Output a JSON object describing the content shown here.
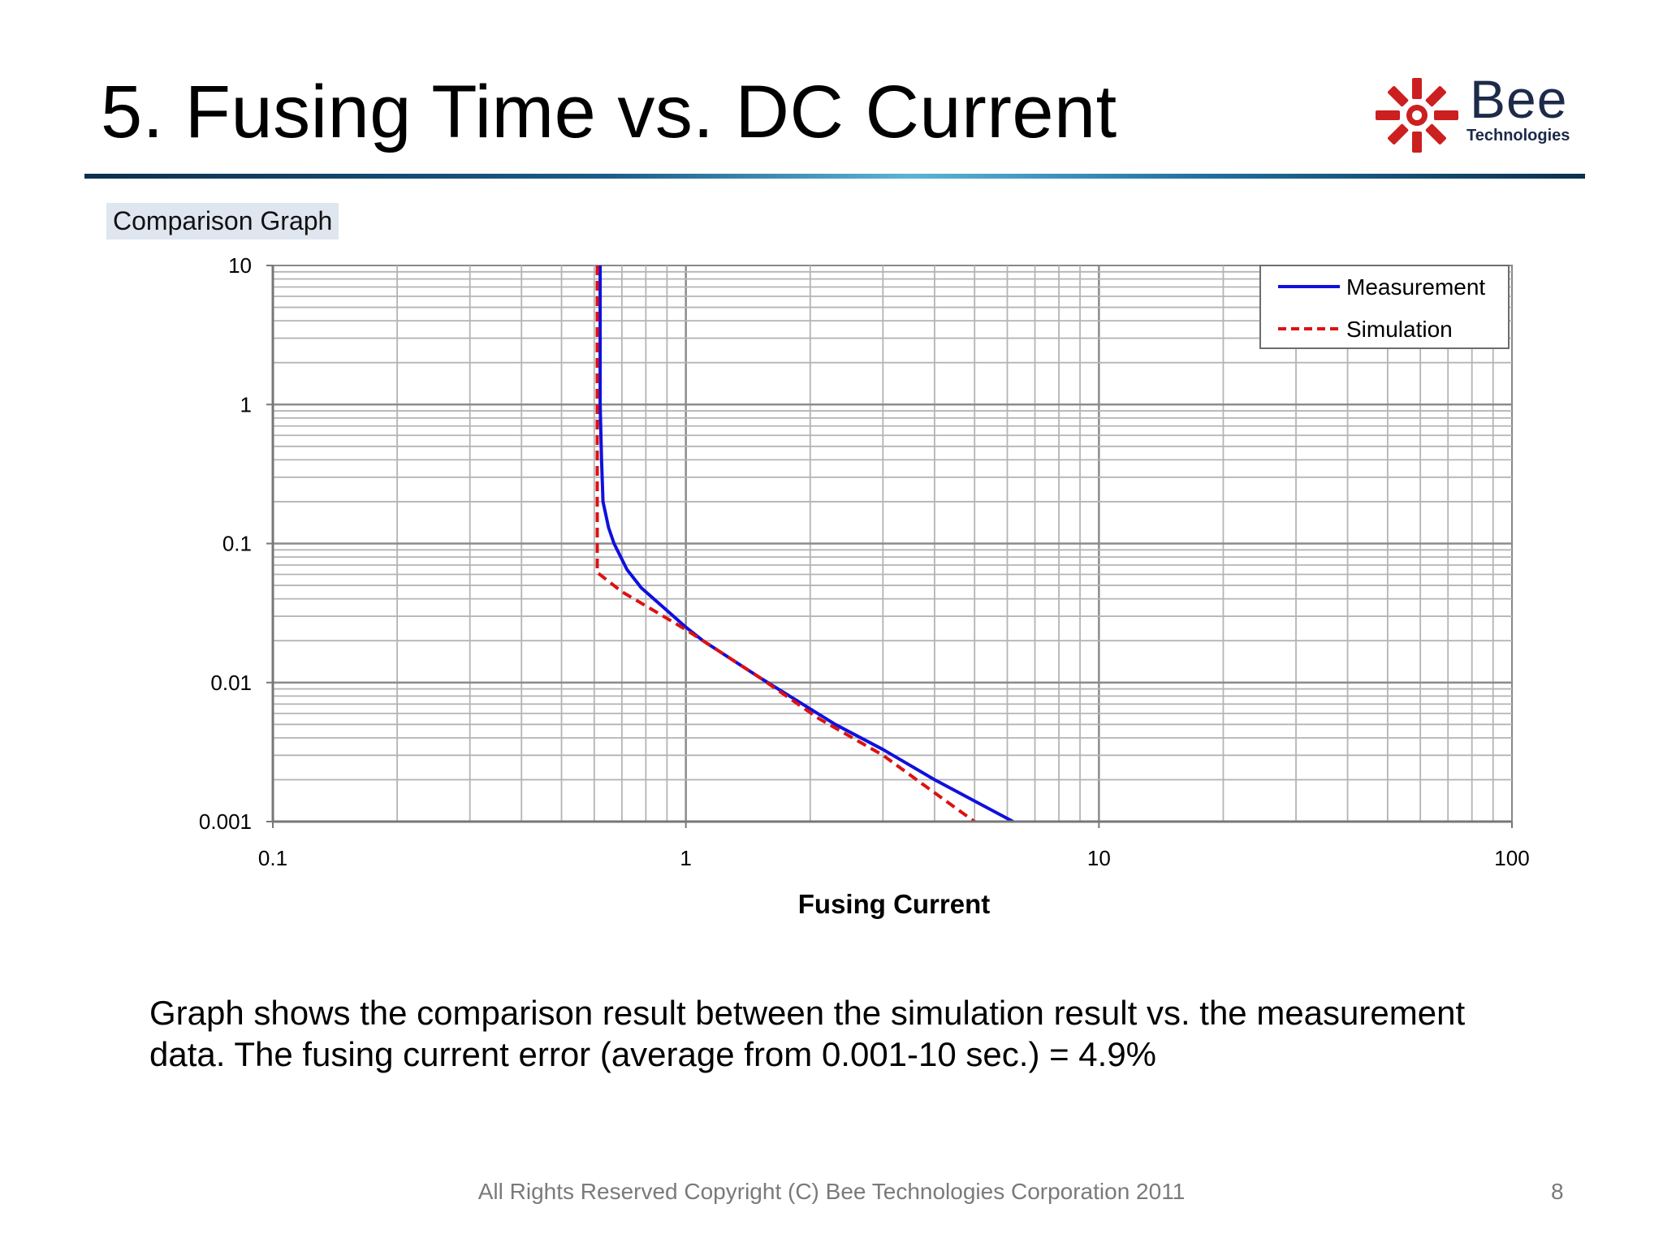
{
  "slide": {
    "title": "5. Fusing Time vs. DC Current",
    "section_label": "Comparison Graph",
    "description": "Graph shows the comparison result between the simulation result vs. the measurement data. The fusing current error (average from 0.001-10 sec.) = 4.9%",
    "footer": "All Rights Reserved Copyright (C) Bee Technologies Corporation 2011",
    "page_number": "8",
    "logo": {
      "word": "Bee",
      "subtitle": "Technologies",
      "icon": "bee-logo-icon",
      "color": "#cc1f1f"
    }
  },
  "chart_data": {
    "type": "line",
    "xlabel": "Fusing Current",
    "ylabel": "",
    "xscale": "log",
    "yscale": "log",
    "xlim": [
      0.1,
      100
    ],
    "ylim": [
      0.001,
      10
    ],
    "x_ticks": [
      "0.1",
      "1",
      "10",
      "100"
    ],
    "y_ticks": [
      "10",
      "1",
      "0.1",
      "0.01",
      "0.001"
    ],
    "grid": true,
    "legend_position": "top-right",
    "series": [
      {
        "name": "Measurement",
        "color": "#1010dd",
        "style": "solid",
        "points": [
          [
            0.62,
            10
          ],
          [
            0.62,
            1
          ],
          [
            0.625,
            0.4
          ],
          [
            0.63,
            0.2
          ],
          [
            0.65,
            0.13
          ],
          [
            0.67,
            0.1
          ],
          [
            0.72,
            0.065
          ],
          [
            0.78,
            0.048
          ],
          [
            0.9,
            0.033
          ],
          [
            1.0,
            0.025
          ],
          [
            1.1,
            0.02
          ],
          [
            1.5,
            0.011
          ],
          [
            2.3,
            0.005
          ],
          [
            3.0,
            0.0033
          ],
          [
            4.0,
            0.002
          ],
          [
            6.2,
            0.001
          ]
        ]
      },
      {
        "name": "Simulation",
        "color": "#dd1111",
        "style": "dashed",
        "points": [
          [
            0.61,
            10
          ],
          [
            0.61,
            1
          ],
          [
            0.61,
            0.1
          ],
          [
            0.61,
            0.062
          ],
          [
            0.7,
            0.045
          ],
          [
            0.85,
            0.032
          ],
          [
            1.0,
            0.024
          ],
          [
            1.1,
            0.02
          ],
          [
            1.5,
            0.011
          ],
          [
            2.1,
            0.0055
          ],
          [
            3.0,
            0.003
          ],
          [
            3.8,
            0.0018
          ],
          [
            5.0,
            0.001
          ]
        ]
      }
    ]
  }
}
